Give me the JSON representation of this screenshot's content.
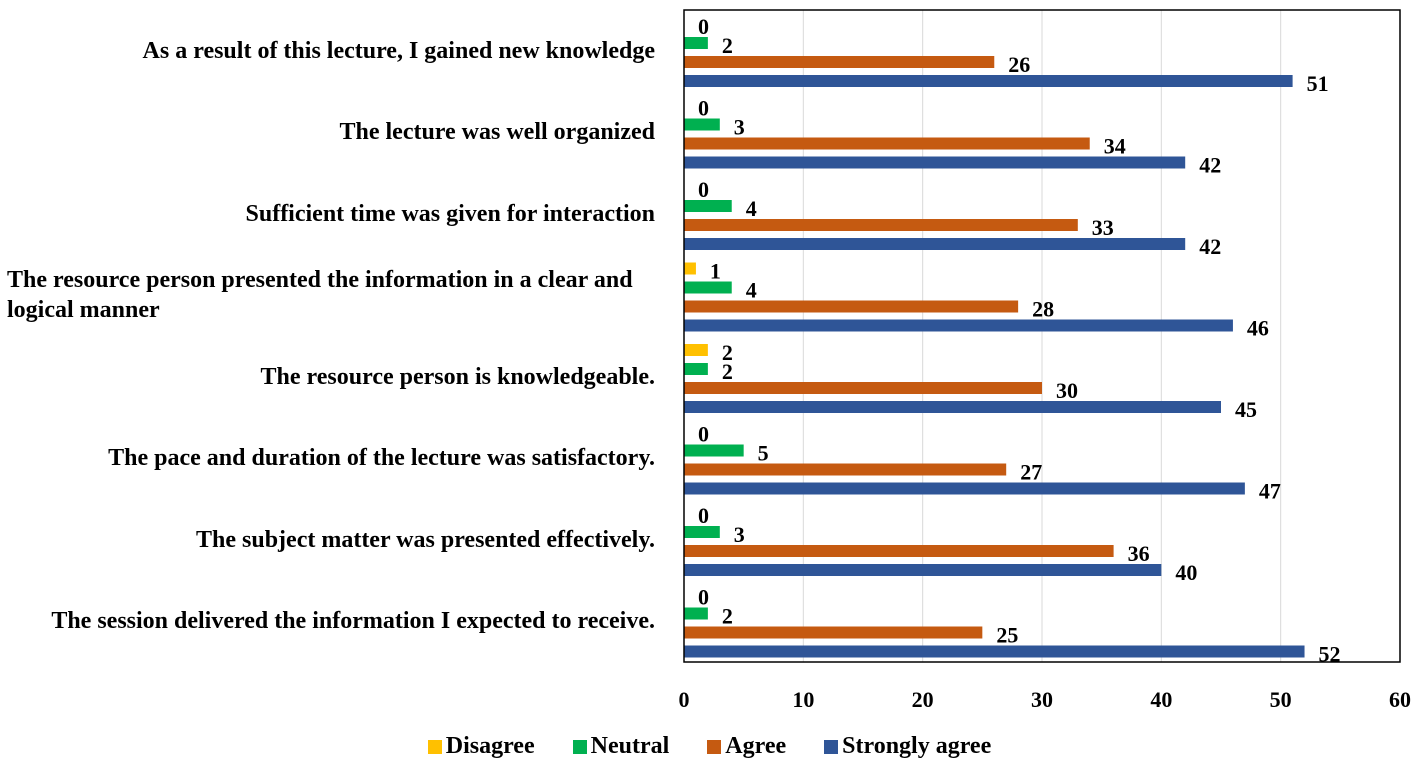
{
  "chart_data": {
    "type": "bar",
    "orientation": "horizontal",
    "categories": [
      "As a result of this lecture, I gained new knowledge",
      "The lecture was well organized",
      "Sufficient time was given for interaction",
      "The resource person presented the information in a clear and logical manner",
      "The resource person is knowledgeable.",
      "The pace and duration of the lecture was satisfactory.",
      "The subject matter was presented effectively.",
      "The session delivered the information I expected to receive."
    ],
    "series": [
      {
        "name": "Disagree",
        "color": "#ffc000",
        "values": [
          0,
          0,
          0,
          1,
          2,
          0,
          0,
          0
        ]
      },
      {
        "name": "Neutral",
        "color": "#00b050",
        "values": [
          2,
          3,
          4,
          4,
          2,
          5,
          3,
          2
        ]
      },
      {
        "name": "Agree",
        "color": "#c55a11",
        "values": [
          26,
          34,
          33,
          28,
          30,
          27,
          36,
          25
        ]
      },
      {
        "name": "Strongly agree",
        "color": "#2f5597",
        "values": [
          51,
          42,
          42,
          46,
          45,
          47,
          40,
          52
        ]
      }
    ],
    "xlim": [
      0,
      60
    ],
    "xticks": [
      0,
      10,
      20,
      30,
      40,
      50,
      60
    ],
    "grid": true,
    "legend": "bottom"
  }
}
